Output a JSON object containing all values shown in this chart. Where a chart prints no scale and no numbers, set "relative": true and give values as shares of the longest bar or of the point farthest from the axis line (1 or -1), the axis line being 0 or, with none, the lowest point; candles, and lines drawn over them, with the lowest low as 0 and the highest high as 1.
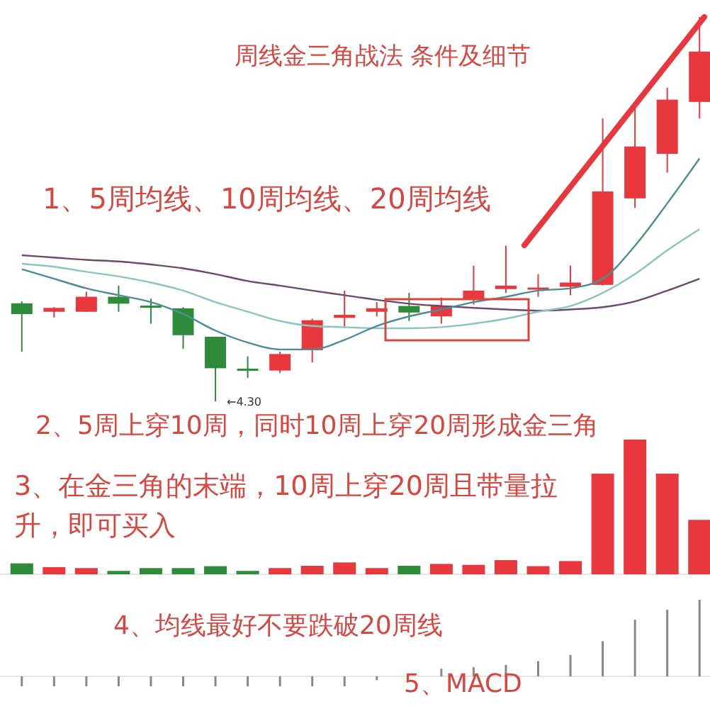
{
  "chart_data": [
    {
      "type": "candlestick",
      "title": "周线金三角战法  条件及细节",
      "relative": true,
      "categories": [
        null,
        null,
        null,
        null,
        null,
        null,
        null,
        null,
        null,
        null,
        null,
        null,
        null,
        null,
        null,
        null,
        null,
        null,
        null,
        null,
        null,
        null
      ],
      "ohlc": [
        [
          0.255,
          0.26,
          0.129,
          0.227
        ],
        [
          0.233,
          0.245,
          0.218,
          0.243
        ],
        [
          0.233,
          0.285,
          0.233,
          0.272
        ],
        [
          0.272,
          0.301,
          0.233,
          0.254
        ],
        [
          0.249,
          0.267,
          0.202,
          0.247
        ],
        [
          0.242,
          0.245,
          0.137,
          0.172
        ],
        [
          0.168,
          0.168,
          0,
          0.086
        ],
        [
          0.085,
          0.117,
          0.061,
          0.082
        ],
        [
          0.08,
          0.129,
          0.074,
          0.123
        ],
        [
          0.133,
          0.215,
          0.101,
          0.211
        ],
        [
          0.217,
          0.288,
          0.19,
          0.225
        ],
        [
          0.233,
          0.258,
          0.221,
          0.242
        ],
        [
          0.248,
          0.282,
          0.209,
          0.231
        ],
        [
          0.221,
          0.27,
          0.202,
          0.249
        ],
        [
          0.264,
          0.353,
          0.252,
          0.288
        ],
        [
          0.292,
          0.405,
          0.282,
          0.301
        ],
        [
          0.293,
          0.331,
          0.272,
          0.296
        ],
        [
          0.298,
          0.353,
          0.276,
          0.309
        ],
        [
          0.303,
          0.736,
          0.301,
          0.546
        ],
        [
          0.528,
          0.779,
          0.503,
          0.663
        ],
        [
          0.644,
          0.816,
          0.595,
          0.785
        ],
        [
          0.779,
          1,
          0.736,
          0.91
        ]
      ],
      "colors": [
        "#2e8b3a",
        "#e8383d",
        "#e8383d",
        "#2e8b3a",
        "#2e8b3a",
        "#2e8b3a",
        "#2e8b3a",
        "#2e8b3a",
        "#e8383d",
        "#e8383d",
        "#e8383d",
        "#e8383d",
        "#2e8b3a",
        "#e8383d",
        "#e8383d",
        "#e8383d",
        "#e8383d",
        "#e8383d",
        "#e8383d",
        "#e8383d",
        "#e8383d",
        "#e8383d"
      ],
      "series": [
        {
          "type": "line",
          "color": "#6b4a6e",
          "values": [
            0.38,
            0.374,
            0.368,
            0.364,
            0.356,
            0.346,
            0.331,
            0.313,
            0.301,
            0.288,
            0.276,
            0.264,
            0.254,
            0.248,
            0.243,
            0.239,
            0.236,
            0.239,
            0.245,
            0.26,
            0.288,
            0.319
          ]
        },
        {
          "type": "line",
          "color": "#8cc4c4",
          "values": [
            0.358,
            0.35,
            0.337,
            0.325,
            0.309,
            0.288,
            0.258,
            0.233,
            0.209,
            0.196,
            0.193,
            0.19,
            0.19,
            0.193,
            0.202,
            0.215,
            0.233,
            0.248,
            0.282,
            0.331,
            0.393,
            0.448
          ]
        },
        {
          "type": "line",
          "color": "#4d8c92",
          "values": [
            0.344,
            0.319,
            0.294,
            0.276,
            0.258,
            0.227,
            0.184,
            0.153,
            0.135,
            0.135,
            0.16,
            0.196,
            0.221,
            0.239,
            0.258,
            0.272,
            0.288,
            0.294,
            0.319,
            0.405,
            0.515,
            0.632
          ]
        }
      ],
      "annotations": [
        "1、5周均线、10周均线、20周均线",
        "←4.30",
        "2、5周上穿10周，同时10周上穿20周形成金三角"
      ]
    },
    {
      "type": "bar",
      "relative": true,
      "categories": [
        null,
        null,
        null,
        null,
        null,
        null,
        null,
        null,
        null,
        null,
        null,
        null,
        null,
        null,
        null,
        null,
        null,
        null,
        null,
        null,
        null,
        null
      ],
      "values": [
        0.081,
        0.053,
        0.046,
        0.025,
        0.046,
        0.046,
        0.06,
        0.025,
        0.046,
        0.063,
        0.088,
        0.046,
        0.063,
        0.077,
        0.07,
        0.105,
        0.06,
        0.098,
        0.747,
        1,
        0.747,
        0.404
      ],
      "colors": [
        "#2e8b3a",
        "#e8383d",
        "#e8383d",
        "#2e8b3a",
        "#2e8b3a",
        "#2e8b3a",
        "#2e8b3a",
        "#2e8b3a",
        "#e8383d",
        "#e8383d",
        "#e8383d",
        "#e8383d",
        "#2e8b3a",
        "#e8383d",
        "#e8383d",
        "#e8383d",
        "#e8383d",
        "#e8383d",
        "#e8383d",
        "#e8383d",
        "#e8383d",
        "#e8383d"
      ],
      "annotations": [
        "3、在金三角的末端，10周上穿20周且带量拉升，即可买入"
      ]
    },
    {
      "type": "bar",
      "relative": true,
      "categories": [
        null,
        null,
        null,
        null,
        null,
        null,
        null,
        null,
        null,
        null,
        null,
        null,
        null,
        null,
        null,
        null,
        null,
        null,
        null,
        null,
        null,
        null
      ],
      "values": [
        -0.13,
        -0.13,
        -0.13,
        -0.13,
        -0.13,
        -0.13,
        -0.13,
        -0.13,
        -0.13,
        -0.13,
        -0.13,
        -0.05,
        null,
        0.1,
        0.12,
        0.15,
        0.2,
        0.28,
        0.46,
        0.74,
        0.87,
        1
      ],
      "color": "#888888",
      "annotations": [
        "4、均线最好不要跌破20周线",
        "5、MACD"
      ]
    }
  ]
}
